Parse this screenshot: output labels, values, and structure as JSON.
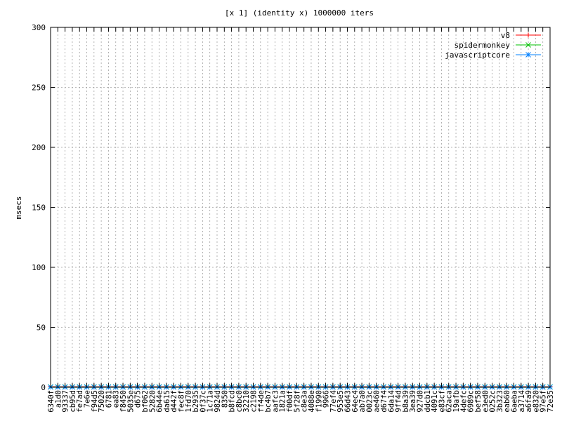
{
  "chart_data": {
    "type": "line",
    "title": "[x 1] (identity x) 1000000 iters",
    "xlabel": "",
    "ylabel": "msecs",
    "ylim": [
      0,
      300
    ],
    "yticks": [
      0,
      50,
      100,
      150,
      200,
      250,
      300
    ],
    "grid": true,
    "legend_position": "top-right",
    "categories": [
      "6340f",
      "a1d0",
      "93337",
      "cb95d",
      "fe7ad",
      "7e6e",
      "f94d5",
      "75020",
      "6781",
      "ea83",
      "f8450",
      "5035e",
      "d675",
      "bf062",
      "52820",
      "6b44e",
      "da615",
      "d442f",
      "fec8f",
      "1fd70",
      "b2935",
      "0f37c",
      "1c71a",
      "9824d",
      "8350",
      "b8fcd",
      "c8bc0",
      "32210",
      "c2198",
      "ff4de",
      "bc4b7",
      "aafc3",
      "1821a",
      "f00df",
      "5f28f",
      "c8e3a",
      "4088e",
      "f1990",
      "9966",
      "77ef4",
      "953e5",
      "66d43",
      "64ec4",
      "ab7a0",
      "0023c",
      "ae460",
      "d67f4",
      "6da14",
      "9ff4d",
      "b8a39",
      "3ea39",
      "927d0",
      "ddcb1",
      "4091c",
      "e83cf",
      "62aca",
      "19afb",
      "4defc",
      "6989c",
      "bef58",
      "e3ed0",
      "0252c",
      "3b323",
      "eab60",
      "6aeba",
      "a3714",
      "a6fa9",
      "e8320",
      "97e5f",
      "72e35"
    ],
    "series": [
      {
        "name": "v8",
        "color": "#ff0000",
        "marker": "+",
        "values": [
          0.6,
          0.6,
          0.6,
          0.6,
          0.6,
          0.6,
          0.6,
          0.6,
          0.6,
          0.6,
          0.6,
          0.6,
          0.6,
          0.6,
          0.6,
          0.6,
          0.6,
          0.6,
          0.6,
          0.6,
          0.6,
          0.6,
          0.6,
          0.6,
          0.6,
          0.6,
          0.6,
          0.6,
          0.6,
          0.6,
          0.6,
          0.6,
          0.6,
          0.6,
          0.6,
          0.6,
          0.6,
          0.6,
          0.6,
          0.6,
          0.6,
          0.6,
          0.6,
          0.6,
          0.6,
          0.6,
          0.6,
          0.6,
          0.6,
          0.6,
          0.6,
          0.6,
          0.6,
          0.6,
          0.6,
          0.6,
          0.6,
          0.6,
          0.6,
          0.6,
          0.6,
          0.6,
          0.6,
          0.6,
          0.6,
          0.6,
          0.6,
          0.6,
          0.6,
          0.6
        ]
      },
      {
        "name": "spidermonkey",
        "color": "#00c000",
        "marker": "x",
        "values": [
          0.4,
          0.4,
          0.4,
          0.4,
          0.4,
          0.4,
          0.4,
          0.4,
          0.4,
          0.4,
          0.4,
          0.4,
          0.4,
          0.4,
          0.4,
          0.4,
          0.4,
          0.4,
          0.4,
          0.4,
          0.4,
          0.4,
          0.4,
          0.4,
          0.4,
          0.4,
          0.4,
          0.4,
          0.4,
          0.4,
          0.4,
          0.4,
          0.4,
          0.4,
          0.4,
          0.4,
          0.4,
          0.4,
          0.4,
          0.4,
          0.4,
          0.4,
          0.4,
          0.4,
          0.4,
          0.4,
          0.4,
          0.4,
          0.4,
          0.4,
          0.4,
          0.4,
          0.4,
          0.4,
          0.4,
          0.4,
          0.4,
          0.4,
          0.4,
          0.4,
          0.4,
          0.4,
          0.4,
          0.4,
          0.4,
          0.4,
          0.4,
          0.4,
          0.4,
          0.4
        ]
      },
      {
        "name": "javascriptcore",
        "color": "#0080ff",
        "marker": "*",
        "values": [
          0.2,
          0.2,
          0.2,
          0.2,
          0.2,
          0.2,
          0.2,
          0.2,
          0.2,
          0.2,
          0.2,
          0.2,
          0.2,
          0.2,
          0.2,
          0.2,
          0.2,
          0.2,
          0.2,
          0.2,
          0.2,
          0.2,
          0.2,
          0.2,
          0.2,
          0.2,
          0.2,
          0.2,
          0.2,
          0.2,
          0.2,
          0.2,
          0.2,
          0.2,
          0.2,
          0.2,
          0.2,
          0.2,
          0.2,
          0.2,
          0.2,
          0.2,
          0.2,
          0.2,
          0.2,
          0.2,
          0.2,
          0.2,
          0.2,
          0.2,
          0.2,
          0.2,
          0.2,
          0.2,
          0.2,
          0.2,
          0.2,
          0.2,
          0.2,
          0.2,
          0.2,
          0.2,
          0.2,
          0.2,
          0.2,
          0.2,
          0.2,
          0.2,
          0.2,
          0.2
        ]
      }
    ]
  }
}
